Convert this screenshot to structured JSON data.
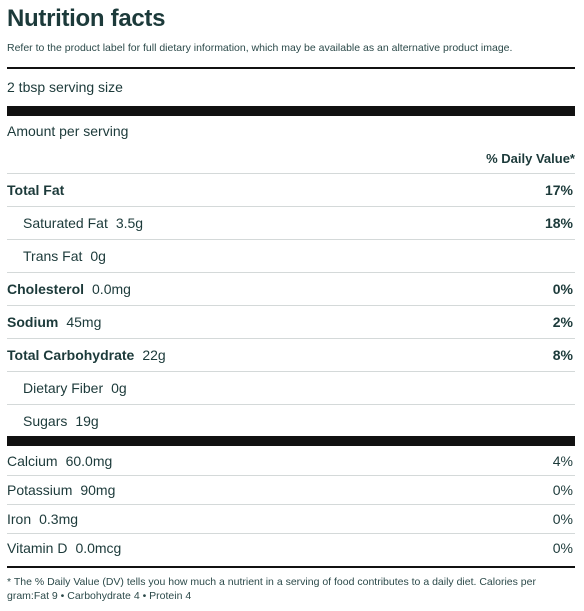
{
  "title": "Nutrition facts",
  "intro": "Refer to the product label for full dietary information, which may be available as an alternative product image.",
  "serving_size": "2 tbsp serving size",
  "amount_per_serving": "Amount per serving",
  "daily_value_header": "% Daily Value*",
  "nutrients": [
    {
      "name": "Total Fat",
      "amount": "",
      "dv": "17%"
    },
    {
      "name": "Saturated Fat",
      "amount": "3.5g",
      "dv": "18%"
    },
    {
      "name": "Trans Fat",
      "amount": "0g",
      "dv": ""
    },
    {
      "name": "Cholesterol",
      "amount": "0.0mg",
      "dv": "0%"
    },
    {
      "name": "Sodium",
      "amount": "45mg",
      "dv": "2%"
    },
    {
      "name": "Total Carbohydrate",
      "amount": "22g",
      "dv": "8%"
    },
    {
      "name": "Dietary Fiber",
      "amount": "0g",
      "dv": ""
    },
    {
      "name": "Sugars",
      "amount": "19g",
      "dv": ""
    }
  ],
  "minerals": [
    {
      "name": "Calcium",
      "amount": "60.0mg",
      "dv": "4%"
    },
    {
      "name": "Potassium",
      "amount": "90mg",
      "dv": "0%"
    },
    {
      "name": "Iron",
      "amount": "0.3mg",
      "dv": "0%"
    },
    {
      "name": "Vitamin D",
      "amount": "0.0mcg",
      "dv": "0%"
    }
  ],
  "footnote": "* The % Daily Value (DV) tells you how much a nutrient in a serving of food contributes to a daily diet. Calories per gram:Fat 9 • Carbohydrate 4 • Protein 4"
}
